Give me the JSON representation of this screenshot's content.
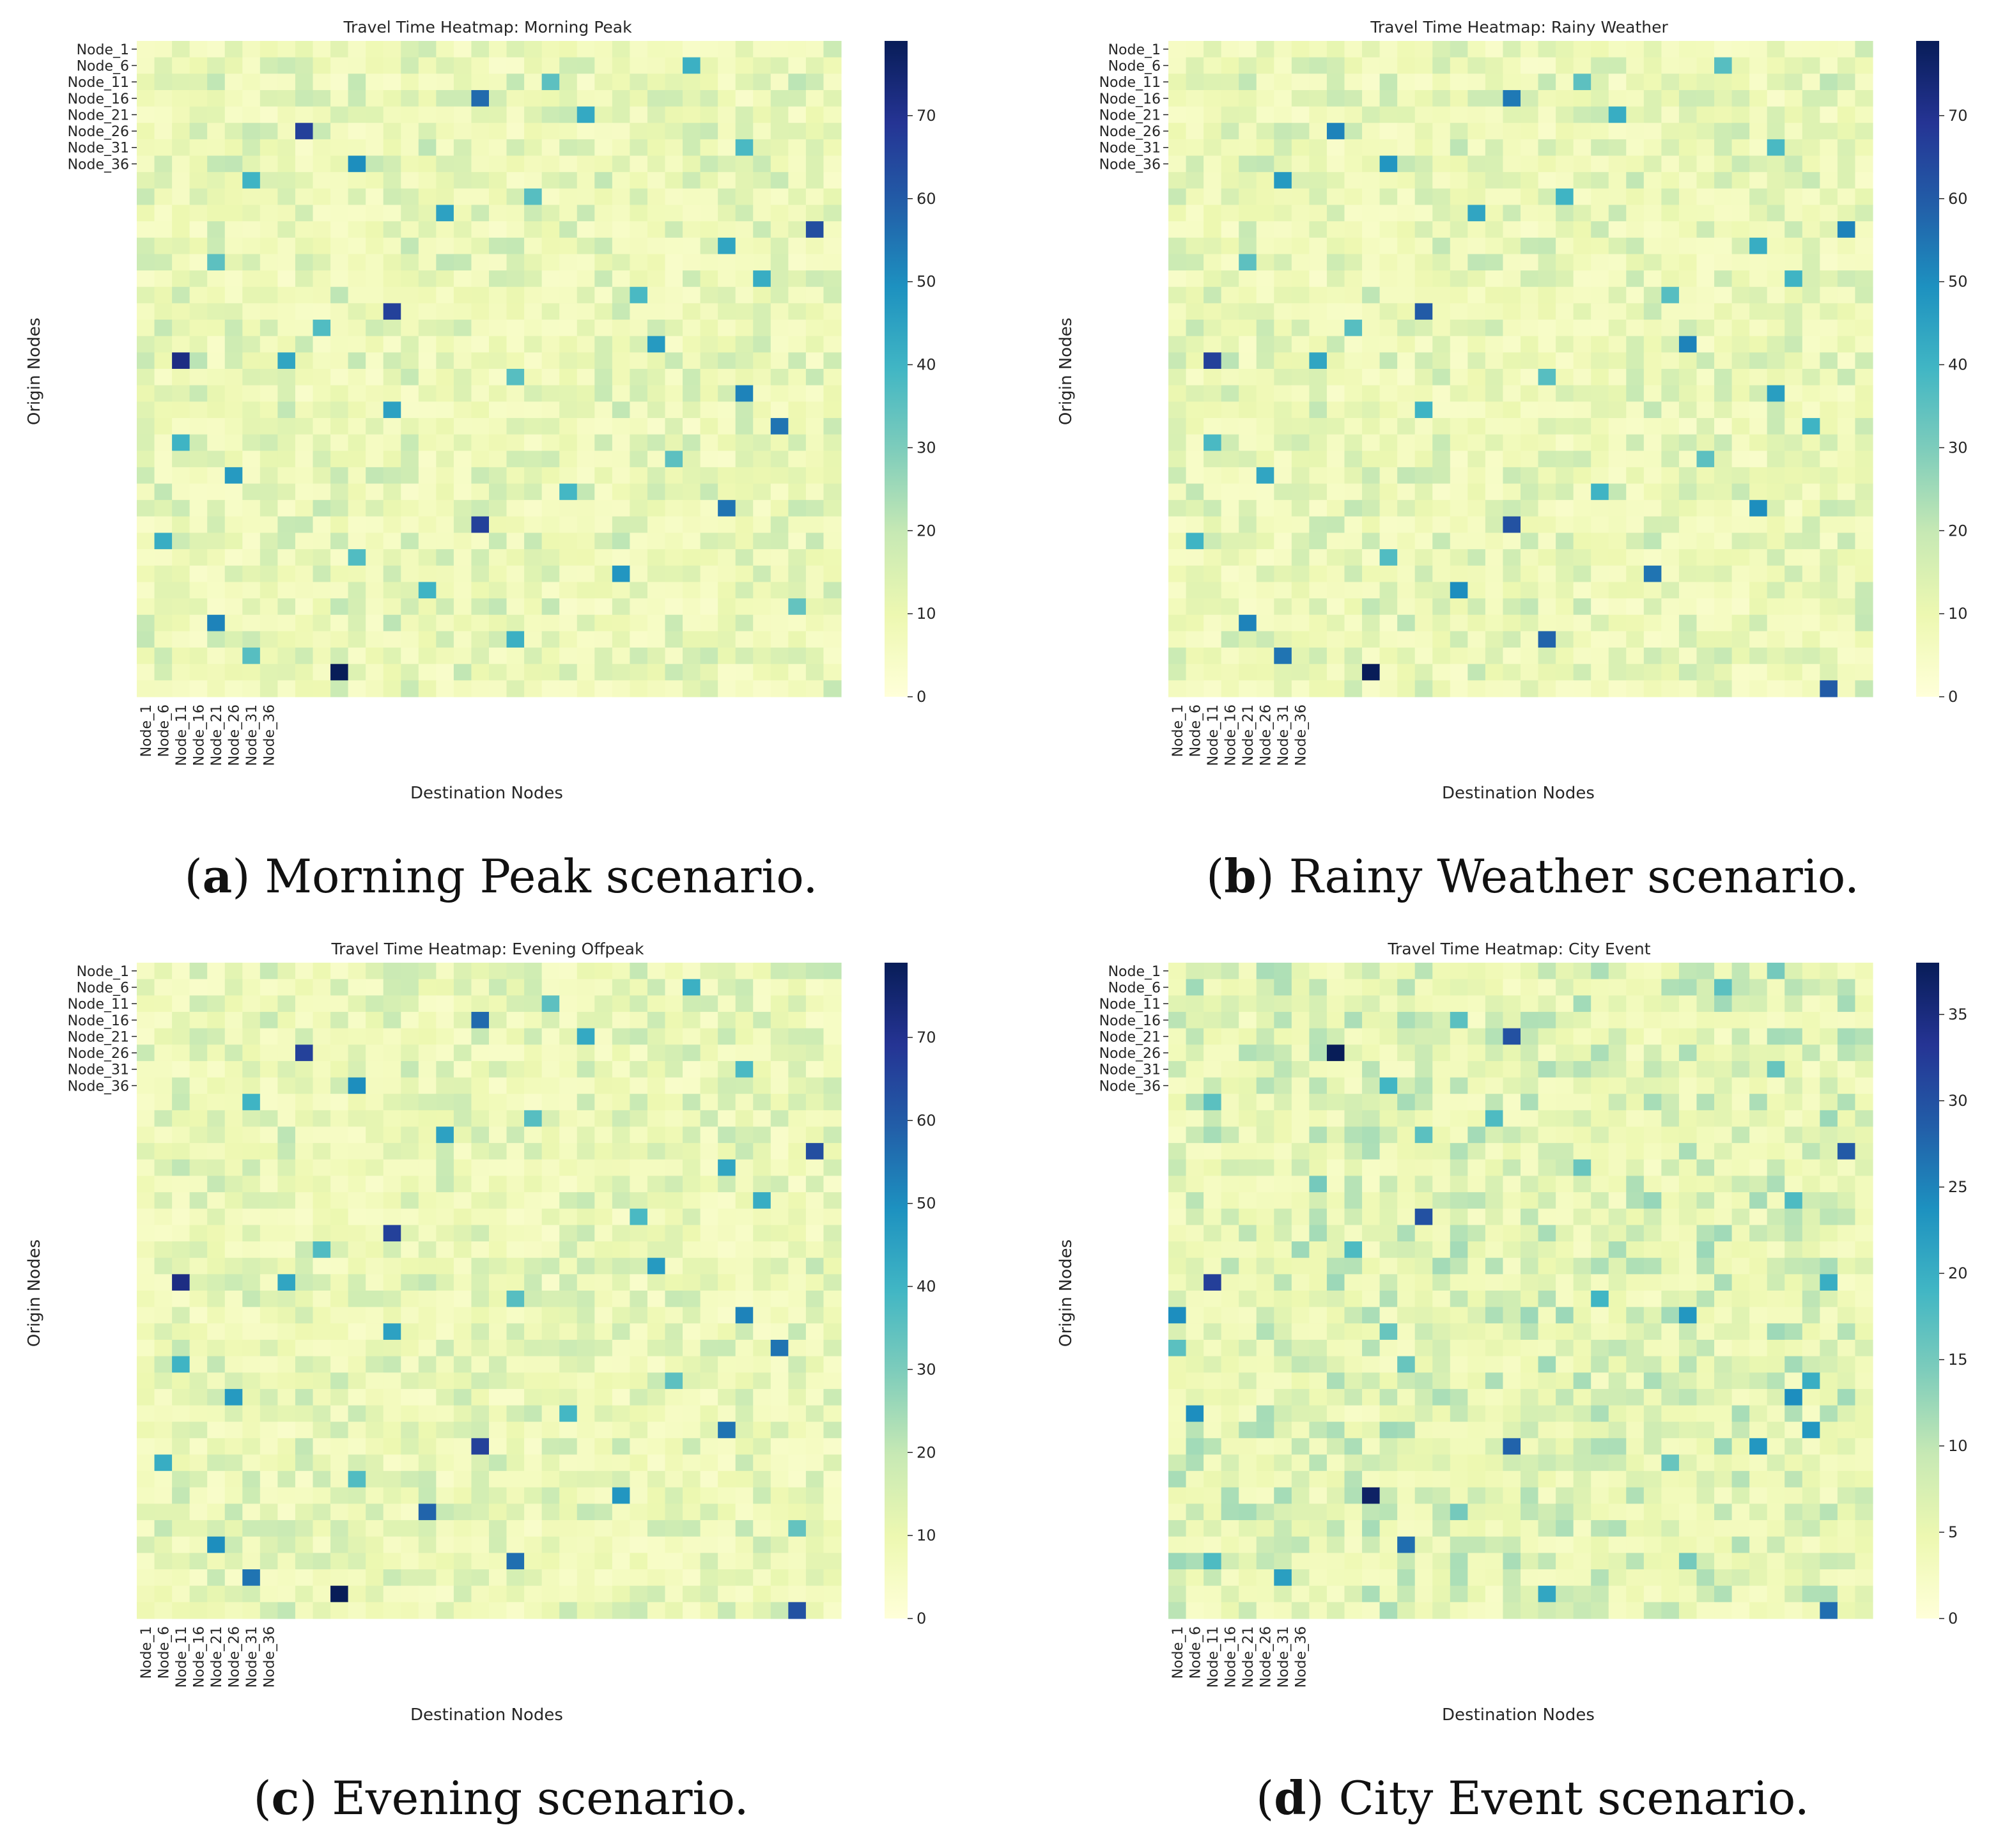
{
  "figure": {
    "captions": [
      {
        "letter": "a",
        "text": "Morning Peak scenario."
      },
      {
        "letter": "b",
        "text": "Rainy Weather scenario."
      },
      {
        "letter": "c",
        "text": "Evening scenario."
      },
      {
        "letter": "d",
        "text": "City Event scenario."
      }
    ]
  },
  "chart_data": [
    {
      "type": "heatmap",
      "title": "Travel Time Heatmap: Morning Peak",
      "xlabel": "Destination Nodes",
      "ylabel": "Origin Nodes",
      "rows": 40,
      "cols": 40,
      "tick_labels": [
        "Node_1",
        "Node_6",
        "Node_11",
        "Node_16",
        "Node_21",
        "Node_26",
        "Node_31",
        "Node_36"
      ],
      "tick_indices": [
        0,
        1,
        2,
        3,
        4,
        5,
        6,
        7
      ],
      "colorbar": {
        "min": 0,
        "max": 79,
        "ticks": [
          0,
          10,
          20,
          30,
          40,
          50,
          60,
          70
        ],
        "colormap": "YlGnBu"
      },
      "background_value": 10,
      "highlights": [
        {
          "row": 38,
          "col": 11,
          "value": 79
        },
        {
          "row": 19,
          "col": 2,
          "value": 72
        },
        {
          "row": 5,
          "col": 9,
          "value": 66
        },
        {
          "row": 16,
          "col": 14,
          "value": 66
        },
        {
          "row": 29,
          "col": 19,
          "value": 66
        },
        {
          "row": 11,
          "col": 38,
          "value": 63
        },
        {
          "row": 3,
          "col": 19,
          "value": 57
        },
        {
          "row": 28,
          "col": 33,
          "value": 55
        },
        {
          "row": 23,
          "col": 36,
          "value": 55
        },
        {
          "row": 7,
          "col": 12,
          "value": 50
        },
        {
          "row": 35,
          "col": 4,
          "value": 52
        },
        {
          "row": 21,
          "col": 34,
          "value": 52
        },
        {
          "row": 32,
          "col": 27,
          "value": 48
        },
        {
          "row": 26,
          "col": 5,
          "value": 47
        },
        {
          "row": 18,
          "col": 29,
          "value": 47
        },
        {
          "row": 22,
          "col": 14,
          "value": 45
        },
        {
          "row": 10,
          "col": 17,
          "value": 45
        },
        {
          "row": 12,
          "col": 33,
          "value": 44
        },
        {
          "row": 19,
          "col": 8,
          "value": 44
        },
        {
          "row": 4,
          "col": 25,
          "value": 43
        },
        {
          "row": 30,
          "col": 1,
          "value": 42
        },
        {
          "row": 14,
          "col": 35,
          "value": 42
        },
        {
          "row": 1,
          "col": 31,
          "value": 41
        },
        {
          "row": 36,
          "col": 21,
          "value": 41
        },
        {
          "row": 24,
          "col": 2,
          "value": 40
        },
        {
          "row": 8,
          "col": 6,
          "value": 40
        },
        {
          "row": 33,
          "col": 16,
          "value": 40
        },
        {
          "row": 27,
          "col": 24,
          "value": 39
        },
        {
          "row": 6,
          "col": 34,
          "value": 38
        },
        {
          "row": 15,
          "col": 28,
          "value": 38
        },
        {
          "row": 17,
          "col": 10,
          "value": 37
        },
        {
          "row": 31,
          "col": 12,
          "value": 37
        },
        {
          "row": 9,
          "col": 22,
          "value": 36
        },
        {
          "row": 20,
          "col": 21,
          "value": 36
        },
        {
          "row": 37,
          "col": 6,
          "value": 36
        },
        {
          "row": 2,
          "col": 23,
          "value": 35
        },
        {
          "row": 13,
          "col": 4,
          "value": 35
        },
        {
          "row": 25,
          "col": 30,
          "value": 35
        },
        {
          "row": 34,
          "col": 37,
          "value": 34
        }
      ]
    },
    {
      "type": "heatmap",
      "title": "Travel Time Heatmap: Rainy Weather",
      "xlabel": "Destination Nodes",
      "ylabel": "Origin Nodes",
      "rows": 40,
      "cols": 40,
      "tick_labels": [
        "Node_1",
        "Node_6",
        "Node_11",
        "Node_16",
        "Node_21",
        "Node_26",
        "Node_31",
        "Node_36"
      ],
      "tick_indices": [
        0,
        1,
        2,
        3,
        4,
        5,
        6,
        7
      ],
      "colorbar": {
        "min": 0,
        "max": 79,
        "ticks": [
          0,
          10,
          20,
          30,
          40,
          50,
          60,
          70
        ],
        "colormap": "YlGnBu"
      },
      "background_value": 10,
      "highlights": [
        {
          "row": 38,
          "col": 11,
          "value": 79
        },
        {
          "row": 19,
          "col": 2,
          "value": 66
        },
        {
          "row": 5,
          "col": 9,
          "value": 52
        },
        {
          "row": 16,
          "col": 14,
          "value": 60
        },
        {
          "row": 29,
          "col": 19,
          "value": 62
        },
        {
          "row": 11,
          "col": 38,
          "value": 52
        },
        {
          "row": 3,
          "col": 19,
          "value": 54
        },
        {
          "row": 28,
          "col": 33,
          "value": 50
        },
        {
          "row": 23,
          "col": 36,
          "value": 40
        },
        {
          "row": 7,
          "col": 12,
          "value": 48
        },
        {
          "row": 35,
          "col": 4,
          "value": 52
        },
        {
          "row": 21,
          "col": 34,
          "value": 46
        },
        {
          "row": 32,
          "col": 27,
          "value": 55
        },
        {
          "row": 26,
          "col": 5,
          "value": 44
        },
        {
          "row": 18,
          "col": 29,
          "value": 52
        },
        {
          "row": 22,
          "col": 14,
          "value": 40
        },
        {
          "row": 10,
          "col": 17,
          "value": 44
        },
        {
          "row": 12,
          "col": 33,
          "value": 42
        },
        {
          "row": 19,
          "col": 8,
          "value": 44
        },
        {
          "row": 4,
          "col": 25,
          "value": 42
        },
        {
          "row": 30,
          "col": 1,
          "value": 40
        },
        {
          "row": 14,
          "col": 35,
          "value": 40
        },
        {
          "row": 1,
          "col": 31,
          "value": 36
        },
        {
          "row": 36,
          "col": 21,
          "value": 58
        },
        {
          "row": 24,
          "col": 2,
          "value": 38
        },
        {
          "row": 8,
          "col": 6,
          "value": 47
        },
        {
          "row": 33,
          "col": 16,
          "value": 50
        },
        {
          "row": 27,
          "col": 24,
          "value": 40
        },
        {
          "row": 6,
          "col": 34,
          "value": 38
        },
        {
          "row": 15,
          "col": 28,
          "value": 36
        },
        {
          "row": 17,
          "col": 10,
          "value": 36
        },
        {
          "row": 31,
          "col": 12,
          "value": 37
        },
        {
          "row": 9,
          "col": 22,
          "value": 40
        },
        {
          "row": 20,
          "col": 21,
          "value": 36
        },
        {
          "row": 37,
          "col": 6,
          "value": 55
        },
        {
          "row": 2,
          "col": 23,
          "value": 35
        },
        {
          "row": 13,
          "col": 4,
          "value": 35
        },
        {
          "row": 25,
          "col": 30,
          "value": 35
        },
        {
          "row": 39,
          "col": 37,
          "value": 60
        }
      ]
    },
    {
      "type": "heatmap",
      "title": "Travel Time Heatmap: Evening Offpeak",
      "xlabel": "Destination Nodes",
      "ylabel": "Origin Nodes",
      "rows": 40,
      "cols": 40,
      "tick_labels": [
        "Node_1",
        "Node_6",
        "Node_11",
        "Node_16",
        "Node_21",
        "Node_26",
        "Node_31",
        "Node_36"
      ],
      "tick_indices": [
        0,
        1,
        2,
        3,
        4,
        5,
        6,
        7
      ],
      "colorbar": {
        "min": 0,
        "max": 79,
        "ticks": [
          0,
          10,
          20,
          30,
          40,
          50,
          60,
          70
        ],
        "colormap": "YlGnBu"
      },
      "background_value": 10,
      "highlights": [
        {
          "row": 38,
          "col": 11,
          "value": 79
        },
        {
          "row": 19,
          "col": 2,
          "value": 72
        },
        {
          "row": 5,
          "col": 9,
          "value": 66
        },
        {
          "row": 16,
          "col": 14,
          "value": 66
        },
        {
          "row": 29,
          "col": 19,
          "value": 66
        },
        {
          "row": 11,
          "col": 38,
          "value": 63
        },
        {
          "row": 3,
          "col": 19,
          "value": 57
        },
        {
          "row": 28,
          "col": 33,
          "value": 55
        },
        {
          "row": 23,
          "col": 36,
          "value": 55
        },
        {
          "row": 7,
          "col": 12,
          "value": 50
        },
        {
          "row": 36,
          "col": 21,
          "value": 56
        },
        {
          "row": 21,
          "col": 34,
          "value": 52
        },
        {
          "row": 32,
          "col": 27,
          "value": 48
        },
        {
          "row": 26,
          "col": 5,
          "value": 47
        },
        {
          "row": 18,
          "col": 29,
          "value": 47
        },
        {
          "row": 22,
          "col": 14,
          "value": 45
        },
        {
          "row": 10,
          "col": 17,
          "value": 45
        },
        {
          "row": 12,
          "col": 33,
          "value": 44
        },
        {
          "row": 19,
          "col": 8,
          "value": 44
        },
        {
          "row": 4,
          "col": 25,
          "value": 43
        },
        {
          "row": 30,
          "col": 1,
          "value": 42
        },
        {
          "row": 14,
          "col": 35,
          "value": 42
        },
        {
          "row": 1,
          "col": 31,
          "value": 41
        },
        {
          "row": 35,
          "col": 4,
          "value": 50
        },
        {
          "row": 24,
          "col": 2,
          "value": 40
        },
        {
          "row": 8,
          "col": 6,
          "value": 40
        },
        {
          "row": 33,
          "col": 16,
          "value": 58
        },
        {
          "row": 27,
          "col": 24,
          "value": 39
        },
        {
          "row": 6,
          "col": 34,
          "value": 38
        },
        {
          "row": 15,
          "col": 28,
          "value": 38
        },
        {
          "row": 17,
          "col": 10,
          "value": 37
        },
        {
          "row": 31,
          "col": 12,
          "value": 37
        },
        {
          "row": 9,
          "col": 22,
          "value": 36
        },
        {
          "row": 20,
          "col": 21,
          "value": 36
        },
        {
          "row": 37,
          "col": 6,
          "value": 55
        },
        {
          "row": 2,
          "col": 23,
          "value": 35
        },
        {
          "row": 39,
          "col": 37,
          "value": 62
        },
        {
          "row": 25,
          "col": 30,
          "value": 35
        },
        {
          "row": 34,
          "col": 37,
          "value": 34
        }
      ]
    },
    {
      "type": "heatmap",
      "title": "Travel Time Heatmap: City Event",
      "xlabel": "Destination Nodes",
      "ylabel": "Origin Nodes",
      "rows": 40,
      "cols": 40,
      "tick_labels": [
        "Node_1",
        "Node_6",
        "Node_11",
        "Node_16",
        "Node_21",
        "Node_26",
        "Node_31",
        "Node_36"
      ],
      "tick_indices": [
        0,
        1,
        2,
        3,
        4,
        5,
        6,
        7
      ],
      "colorbar": {
        "min": 0,
        "max": 38,
        "ticks": [
          0,
          5,
          10,
          15,
          20,
          25,
          30,
          35
        ],
        "colormap": "YlGnBu"
      },
      "background_value": 6,
      "highlights": [
        {
          "row": 5,
          "col": 9,
          "value": 38
        },
        {
          "row": 32,
          "col": 11,
          "value": 37
        },
        {
          "row": 19,
          "col": 2,
          "value": 32
        },
        {
          "row": 4,
          "col": 19,
          "value": 30
        },
        {
          "row": 15,
          "col": 14,
          "value": 30
        },
        {
          "row": 11,
          "col": 38,
          "value": 29
        },
        {
          "row": 29,
          "col": 19,
          "value": 28
        },
        {
          "row": 35,
          "col": 13,
          "value": 27
        },
        {
          "row": 39,
          "col": 37,
          "value": 27
        },
        {
          "row": 21,
          "col": 0,
          "value": 24
        },
        {
          "row": 27,
          "col": 1,
          "value": 24
        },
        {
          "row": 26,
          "col": 35,
          "value": 24
        },
        {
          "row": 28,
          "col": 36,
          "value": 23
        },
        {
          "row": 21,
          "col": 29,
          "value": 23
        },
        {
          "row": 29,
          "col": 33,
          "value": 23
        },
        {
          "row": 37,
          "col": 6,
          "value": 22
        },
        {
          "row": 38,
          "col": 21,
          "value": 21
        },
        {
          "row": 25,
          "col": 36,
          "value": 20
        },
        {
          "row": 19,
          "col": 37,
          "value": 20
        },
        {
          "row": 7,
          "col": 12,
          "value": 19
        },
        {
          "row": 20,
          "col": 24,
          "value": 19
        },
        {
          "row": 14,
          "col": 35,
          "value": 18
        },
        {
          "row": 17,
          "col": 10,
          "value": 18
        },
        {
          "row": 36,
          "col": 2,
          "value": 18
        },
        {
          "row": 9,
          "col": 18,
          "value": 18
        },
        {
          "row": 23,
          "col": 0,
          "value": 17
        },
        {
          "row": 8,
          "col": 2,
          "value": 17
        },
        {
          "row": 10,
          "col": 14,
          "value": 17
        },
        {
          "row": 1,
          "col": 31,
          "value": 17
        },
        {
          "row": 3,
          "col": 16,
          "value": 17
        },
        {
          "row": 6,
          "col": 34,
          "value": 16
        },
        {
          "row": 22,
          "col": 12,
          "value": 16
        },
        {
          "row": 24,
          "col": 13,
          "value": 16
        },
        {
          "row": 12,
          "col": 23,
          "value": 16
        },
        {
          "row": 30,
          "col": 28,
          "value": 16
        },
        {
          "row": 33,
          "col": 16,
          "value": 15
        },
        {
          "row": 0,
          "col": 34,
          "value": 15
        },
        {
          "row": 13,
          "col": 8,
          "value": 15
        },
        {
          "row": 36,
          "col": 29,
          "value": 15
        }
      ]
    }
  ]
}
